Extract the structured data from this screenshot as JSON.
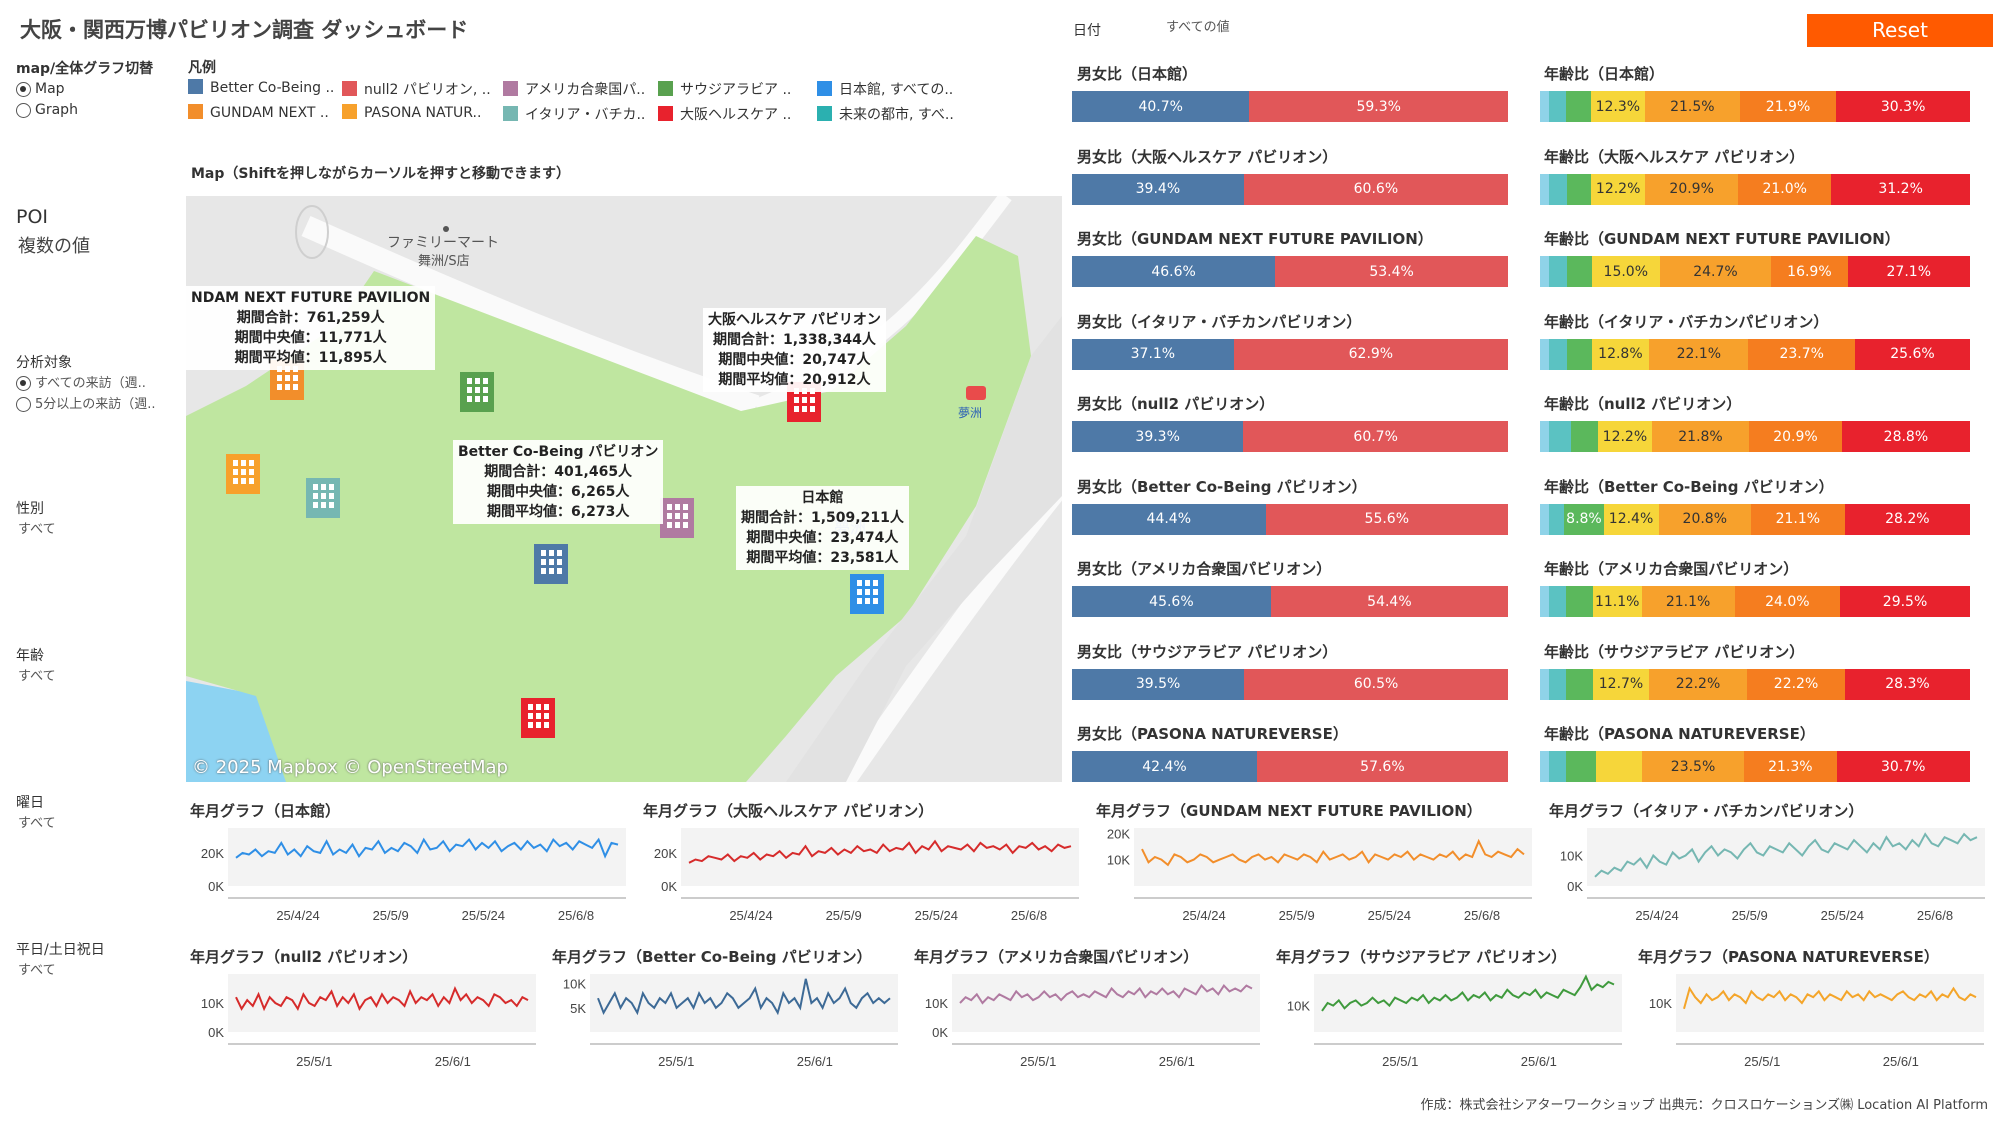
{
  "title": "大阪・関西万博パビリオン調査 ダッシュボード",
  "date_filter": {
    "label": "日付",
    "value": "すべての値"
  },
  "reset_label": "Reset",
  "toggle": {
    "label": "map/全体グラフ切替",
    "options": [
      "Map",
      "Graph"
    ],
    "selected": 0
  },
  "legend": {
    "title": "凡例",
    "items": [
      {
        "label": "Better Co-Being ..",
        "color": "#4e79a7"
      },
      {
        "label": "null2 パビリオン, ..",
        "color": "#e15759"
      },
      {
        "label": "アメリカ合衆国パ..",
        "color": "#b07aa1"
      },
      {
        "label": "サウジアラビア ..",
        "color": "#59a14f"
      },
      {
        "label": "日本館, すべての..",
        "color": "#2f8fe6"
      },
      {
        "label": "GUNDAM NEXT ..",
        "color": "#f28e2b"
      },
      {
        "label": "PASONA NATUR..",
        "color": "#f7a12c"
      },
      {
        "label": "イタリア・バチカ..",
        "color": "#76b7b2"
      },
      {
        "label": "大阪ヘルスケア ..",
        "color": "#e8222d"
      },
      {
        "label": "未来の都市, すべ..",
        "color": "#2bb0b0"
      }
    ]
  },
  "poi": {
    "label": "POI",
    "value": "複数の値"
  },
  "filters": [
    {
      "label": "分析対象",
      "options": [
        "すべての来訪（週..",
        "5分以上の来訪（週.."
      ],
      "selected": 0
    },
    {
      "label": "性別",
      "value": "すべて"
    },
    {
      "label": "年齢",
      "value": "すべて"
    },
    {
      "label": "曜日",
      "value": "すべて"
    },
    {
      "label": "平日/土日祝日",
      "value": "すべて"
    }
  ],
  "map": {
    "title": "Map（Shiftを押しながらカーソルを押すと移動できます）",
    "copyright": "© 2025 Mapbox © OpenStreetMap",
    "place_labels": [
      "ファミリーマート",
      "舞洲/S店",
      "夢洲",
      "夢洲"
    ],
    "tooltips": [
      {
        "name": "NDAM NEXT FUTURE PAVILION",
        "total": "期間合計：761,259人",
        "median": "期間中央値：11,771人",
        "mean": "期間平均値：11,895人"
      },
      {
        "name": "大阪ヘルスケア パビリオン",
        "total": "期間合計：1,338,344人",
        "median": "期間中央値：20,747人",
        "mean": "期間平均値：20,912人"
      },
      {
        "name": "Better Co-Being パビリオン",
        "total": "期間合計：401,465人",
        "median": "期間中央値：6,265人",
        "mean": "期間平均値：6,273人"
      },
      {
        "name": "日本館",
        "total": "期間合計：1,509,211人",
        "median": "期間中央値：23,474人",
        "mean": "期間平均値：23,581人"
      }
    ],
    "markers": [
      {
        "name": "GUNDAM NEXT FUTURE PAVILION",
        "color": "#f28e2b"
      },
      {
        "name": "サウジアラビア パビリオン",
        "color": "#59a14f"
      },
      {
        "name": "大阪ヘルスケア パビリオン",
        "color": "#e8222d"
      },
      {
        "name": "PASONA NATUREVERSE",
        "color": "#f7a12c"
      },
      {
        "name": "イタリア・バチカンパビリオン",
        "color": "#76b7b2"
      },
      {
        "name": "アメリカ合衆国パビリオン",
        "color": "#b07aa1"
      },
      {
        "name": "Better Co-Being パビリオン",
        "color": "#4e79a7"
      },
      {
        "name": "日本館",
        "color": "#2f8fe6"
      },
      {
        "name": "null2 パビリオン",
        "color": "#e8222d"
      }
    ]
  },
  "gender": {
    "male_color": "#4e79a7",
    "female_color": "#e15759",
    "rows": [
      {
        "title": "男女比（日本館）",
        "male": "40.7%",
        "female": "59.3%"
      },
      {
        "title": "男女比（大阪ヘルスケア パビリオン）",
        "male": "39.4%",
        "female": "60.6%"
      },
      {
        "title": "男女比（GUNDAM NEXT FUTURE PAVILION）",
        "male": "46.6%",
        "female": "53.4%"
      },
      {
        "title": "男女比（イタリア・バチカンパビリオン）",
        "male": "37.1%",
        "female": "62.9%"
      },
      {
        "title": "男女比（null2 パビリオン）",
        "male": "39.3%",
        "female": "60.7%"
      },
      {
        "title": "男女比（Better Co-Being パビリオン）",
        "male": "44.4%",
        "female": "55.6%"
      },
      {
        "title": "男女比（アメリカ合衆国パビリオン）",
        "male": "45.6%",
        "female": "54.4%"
      },
      {
        "title": "男女比（サウジアラビア パビリオン）",
        "male": "39.5%",
        "female": "60.5%"
      },
      {
        "title": "男女比（PASONA NATUREVERSE）",
        "male": "42.4%",
        "female": "57.6%"
      }
    ]
  },
  "age": {
    "colors": [
      "#8fd3e8",
      "#5bc2c2",
      "#5bb85c",
      "#f6d63a",
      "#f7a12c",
      "#f57d1f",
      "#e8222d"
    ],
    "rows": [
      {
        "title": "年齢比（日本館）",
        "shares": [
          2.0,
          4.0,
          5.5,
          12.3,
          21.5,
          21.9,
          30.3
        ],
        "labels": [
          "",
          "",
          "",
          "12.3%",
          "21.5%",
          "21.9%",
          "30.3%"
        ]
      },
      {
        "title": "年齢比（大阪ヘルスケア パビリオン）",
        "shares": [
          2.0,
          4.0,
          5.5,
          12.2,
          20.9,
          21.0,
          31.2
        ],
        "labels": [
          "",
          "",
          "",
          "12.2%",
          "20.9%",
          "21.0%",
          "31.2%"
        ]
      },
      {
        "title": "年齢比（GUNDAM NEXT FUTURE PAVILION）",
        "shares": [
          2.0,
          4.0,
          5.5,
          15.0,
          24.7,
          16.9,
          27.1
        ],
        "labels": [
          "",
          "",
          "",
          "15.0%",
          "24.7%",
          "16.9%",
          "27.1%"
        ]
      },
      {
        "title": "年齢比（イタリア・バチカンパビリオン）",
        "shares": [
          2.0,
          4.0,
          5.5,
          12.8,
          22.1,
          23.7,
          25.6
        ],
        "labels": [
          "",
          "",
          "",
          "12.8%",
          "22.1%",
          "23.7%",
          "25.6%"
        ]
      },
      {
        "title": "年齢比（null2 パビリオン）",
        "shares": [
          2.0,
          5.0,
          6.0,
          12.2,
          21.8,
          20.9,
          28.8
        ],
        "labels": [
          "",
          "",
          "",
          "12.2%",
          "21.8%",
          "20.9%",
          "28.8%"
        ]
      },
      {
        "title": "年齢比（Better Co-Being パビリオン）",
        "shares": [
          2.0,
          3.5,
          8.8,
          12.4,
          20.8,
          21.1,
          28.2
        ],
        "labels": [
          "",
          "",
          "8.8%",
          "12.4%",
          "20.8%",
          "21.1%",
          "28.2%"
        ]
      },
      {
        "title": "年齢比（アメリカ合衆国パビリオン）",
        "shares": [
          2.0,
          4.0,
          6.0,
          11.1,
          21.1,
          24.0,
          29.5
        ],
        "labels": [
          "",
          "",
          "",
          "11.1%",
          "21.1%",
          "24.0%",
          "29.5%"
        ]
      },
      {
        "title": "年齢比（サウジアラビア パビリオン）",
        "shares": [
          2.0,
          4.0,
          6.0,
          12.7,
          22.2,
          22.2,
          28.3
        ],
        "labels": [
          "",
          "",
          "",
          "12.7%",
          "22.2%",
          "22.2%",
          "28.3%"
        ]
      },
      {
        "title": "年齢比（PASONA NATUREVERSE）",
        "shares": [
          2.0,
          4.0,
          7.0,
          10.5,
          23.5,
          21.3,
          30.7
        ],
        "labels": [
          "",
          "",
          "",
          "",
          "23.5%",
          "21.3%",
          "30.7%"
        ]
      }
    ]
  },
  "chart_data": [
    {
      "type": "line",
      "title": "年月グラフ（日本館）",
      "color": "#2f8fe6",
      "yticks": [
        "20K",
        "0K"
      ],
      "ylim": [
        0,
        35000
      ],
      "xticks": [
        "25/4/24",
        "25/5/9",
        "25/5/24",
        "25/6/8"
      ],
      "values": [
        17000,
        20000,
        19000,
        22000,
        18000,
        21000,
        20000,
        26000,
        19000,
        22000,
        18000,
        24000,
        21000,
        20000,
        27000,
        19000,
        22000,
        20000,
        25000,
        18000,
        23000,
        22000,
        27000,
        20000,
        23000,
        21000,
        26000,
        24000,
        20000,
        28000,
        22000,
        23000,
        27000,
        21000,
        25000,
        24000,
        28000,
        22000,
        26000,
        23000,
        27000,
        21000,
        24000,
        26000,
        22000,
        27000,
        23000,
        25000,
        21000,
        28000,
        24000,
        26000,
        22000,
        27000,
        25000,
        23000,
        28000,
        18000,
        26000,
        25000
      ]
    },
    {
      "type": "line",
      "title": "年月グラフ（大阪ヘルスケア パビリオン）",
      "color": "#d62b2b",
      "yticks": [
        "20K",
        "0K"
      ],
      "ylim": [
        0,
        35000
      ],
      "xticks": [
        "25/4/24",
        "25/5/9",
        "25/5/24",
        "25/6/8"
      ],
      "values": [
        14000,
        16000,
        15000,
        18000,
        17000,
        16000,
        19000,
        15000,
        18000,
        17000,
        20000,
        16000,
        19000,
        18000,
        21000,
        17000,
        20000,
        19000,
        24000,
        18000,
        21000,
        20000,
        23000,
        19000,
        22000,
        20000,
        24000,
        21000,
        22000,
        20000,
        25000,
        21000,
        23000,
        22000,
        26000,
        20000,
        24000,
        22000,
        27000,
        21000,
        24000,
        23000,
        22000,
        25000,
        21000,
        26000,
        23000,
        24000,
        22000,
        25000,
        20000,
        24000,
        23000,
        26000,
        22000,
        24000,
        21000,
        25000,
        23000,
        24000
      ]
    },
    {
      "type": "line",
      "title": "年月グラフ（GUNDAM NEXT FUTURE PAVILION）",
      "color": "#f28e2b",
      "yticks": [
        "20K",
        "10K"
      ],
      "ylim": [
        0,
        22000
      ],
      "xticks": [
        "25/4/24",
        "25/5/9",
        "25/5/24",
        "25/6/8"
      ],
      "values": [
        14000,
        9000,
        11000,
        10000,
        8000,
        12000,
        11000,
        9000,
        10000,
        12000,
        11000,
        9000,
        10000,
        11000,
        12000,
        10000,
        9000,
        11000,
        12000,
        10000,
        11000,
        9000,
        12000,
        11000,
        10000,
        12000,
        11000,
        9000,
        13000,
        10000,
        11000,
        12000,
        10000,
        11000,
        13000,
        9000,
        12000,
        11000,
        10000,
        12000,
        11000,
        13000,
        10000,
        12000,
        11000,
        10000,
        12000,
        11000,
        13000,
        10000,
        12000,
        11000,
        17000,
        12000,
        11000,
        13000,
        12000,
        11000,
        14000,
        12000
      ]
    },
    {
      "type": "line",
      "title": "年月グラフ（イタリア・バチカンパビリオン）",
      "color": "#76b7b2",
      "yticks": [
        "10K",
        "0K"
      ],
      "ylim": [
        0,
        19000
      ],
      "xticks": [
        "25/4/24",
        "25/5/9",
        "25/5/24",
        "25/6/8"
      ],
      "values": [
        3000,
        5000,
        4000,
        6000,
        5000,
        8000,
        7000,
        9000,
        6000,
        10000,
        8000,
        7000,
        11000,
        9000,
        10000,
        12000,
        8000,
        11000,
        13000,
        10000,
        12000,
        11000,
        9000,
        12000,
        14000,
        11000,
        10000,
        13000,
        12000,
        11000,
        14000,
        12000,
        10000,
        13000,
        15000,
        12000,
        11000,
        14000,
        13000,
        12000,
        15000,
        13000,
        11000,
        14000,
        12000,
        16000,
        13000,
        14000,
        12000,
        15000,
        13000,
        17000,
        14000,
        13000,
        16000,
        15000,
        14000,
        17000,
        15000,
        16000
      ]
    },
    {
      "type": "line",
      "title": "年月グラフ（null2 パビリオン）",
      "color": "#d62b2b",
      "yticks": [
        "10K",
        "0K"
      ],
      "ylim": [
        0,
        20000
      ],
      "xticks": [
        "25/5/1",
        "25/6/1"
      ],
      "values": [
        12000,
        8000,
        11000,
        9000,
        13000,
        8000,
        12000,
        10000,
        9000,
        12000,
        11000,
        8000,
        13000,
        10000,
        9000,
        12000,
        11000,
        14000,
        9000,
        12000,
        10000,
        13000,
        8000,
        11000,
        12000,
        9000,
        13000,
        10000,
        12000,
        11000,
        9000,
        14000,
        10000,
        12000,
        11000,
        13000,
        9000,
        12000,
        10000,
        15000,
        11000,
        13000,
        10000,
        12000,
        11000,
        9000,
        13000,
        12000,
        10000,
        11000,
        9000,
        12000,
        11000
      ]
    },
    {
      "type": "line",
      "title": "年月グラフ（Better Co-Being パビリオン）",
      "color": "#3d6a96",
      "yticks": [
        "10K",
        "5K"
      ],
      "ylim": [
        0,
        12000
      ],
      "xticks": [
        "25/5/1",
        "25/6/1"
      ],
      "values": [
        7000,
        4000,
        6000,
        8000,
        5000,
        7000,
        6000,
        4000,
        8000,
        6000,
        5000,
        7000,
        6000,
        8000,
        5000,
        6000,
        7000,
        5000,
        8000,
        6000,
        7000,
        5000,
        6000,
        8000,
        7000,
        5000,
        6000,
        7000,
        9000,
        5000,
        7000,
        6000,
        4000,
        8000,
        6000,
        7000,
        5000,
        11000,
        6000,
        7000,
        5000,
        8000,
        6000,
        7000,
        9000,
        6000,
        5000,
        7000,
        8000,
        6000,
        7000,
        6000,
        7000
      ]
    },
    {
      "type": "line",
      "title": "年月グラフ（アメリカ合衆国パビリオン）",
      "color": "#b07aa1",
      "yticks": [
        "10K",
        "0K"
      ],
      "ylim": [
        0,
        20000
      ],
      "xticks": [
        "25/5/1",
        "25/6/1"
      ],
      "values": [
        10000,
        12000,
        11000,
        13000,
        10000,
        12000,
        11000,
        13000,
        12000,
        11000,
        14000,
        12000,
        13000,
        11000,
        12000,
        14000,
        12000,
        13000,
        11000,
        13000,
        14000,
        12000,
        13000,
        12000,
        14000,
        13000,
        12000,
        15000,
        13000,
        12000,
        14000,
        13000,
        15000,
        12000,
        14000,
        13000,
        15000,
        13000,
        14000,
        12000,
        15000,
        14000,
        13000,
        16000,
        14000,
        15000,
        13000,
        16000,
        14000,
        15000,
        14000,
        16000,
        15000
      ]
    },
    {
      "type": "line",
      "title": "年月グラフ（サウジアラビア パビリオン）",
      "color": "#3f9a3d",
      "yticks": [
        "10K"
      ],
      "ylim": [
        0,
        22000
      ],
      "xticks": [
        "25/5/1",
        "25/6/1"
      ],
      "values": [
        8000,
        11000,
        10000,
        12000,
        9000,
        11000,
        12000,
        10000,
        11000,
        13000,
        11000,
        12000,
        10000,
        13000,
        12000,
        11000,
        13000,
        12000,
        14000,
        11000,
        13000,
        12000,
        14000,
        12000,
        13000,
        15000,
        12000,
        14000,
        13000,
        15000,
        12000,
        14000,
        13000,
        16000,
        14000,
        13000,
        15000,
        14000,
        16000,
        13000,
        15000,
        14000,
        13000,
        16000,
        15000,
        14000,
        17000,
        21000,
        16000,
        18000,
        17000,
        19000,
        18000
      ]
    },
    {
      "type": "line",
      "title": "年月グラフ（PASONA NATUREVERSE）",
      "color": "#f4a52a",
      "yticks": [
        "10K"
      ],
      "ylim": [
        0,
        20000
      ],
      "xticks": [
        "25/5/1",
        "25/6/1"
      ],
      "values": [
        8000,
        15000,
        12000,
        10000,
        13000,
        11000,
        12000,
        14000,
        11000,
        13000,
        12000,
        10000,
        14000,
        12000,
        11000,
        13000,
        12000,
        14000,
        11000,
        13000,
        12000,
        10000,
        13000,
        12000,
        14000,
        11000,
        13000,
        12000,
        11000,
        14000,
        12000,
        13000,
        11000,
        14000,
        12000,
        13000,
        12000,
        11000,
        13000,
        14000,
        12000,
        11000,
        13000,
        12000,
        14000,
        11000,
        13000,
        12000,
        15000,
        12000,
        11000,
        13000,
        12000
      ]
    }
  ],
  "footer": "作成：株式会社シアターワークショップ 出典元：クロスロケーションズ㈱ Location AI Platform"
}
